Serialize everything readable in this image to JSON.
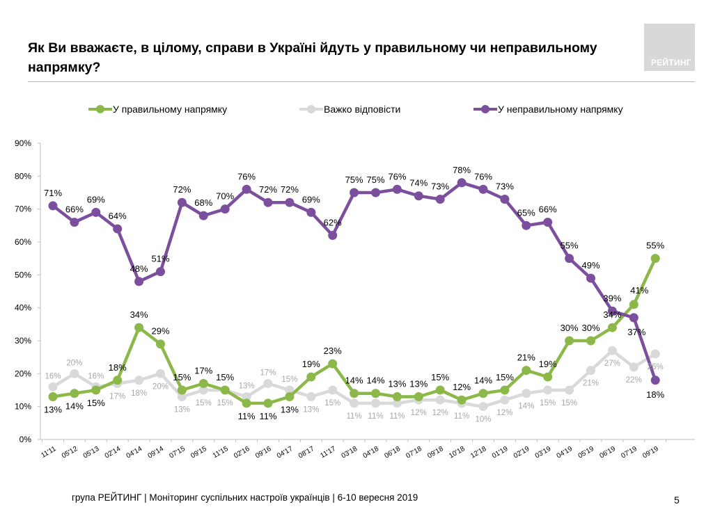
{
  "header": {
    "title": "Як Ви вважаєте, в цілому, справи в Україні йдуть у правильному чи неправильному напрямку?",
    "logo_text": "РЕЙТИНГ"
  },
  "legend": [
    {
      "key": "right",
      "label": "У правильному напрямку"
    },
    {
      "key": "hard",
      "label": "Важко відповісти"
    },
    {
      "key": "wrong",
      "label": "У неправильному напрямку"
    }
  ],
  "colors": {
    "right": "#8cb84a",
    "hard": "#d9d9d9",
    "wrong": "#7b4f9d",
    "hard_label": "#a6a6a6",
    "grid_axis": "#bfbfbf"
  },
  "chart_data": {
    "type": "line",
    "title": "Як Ви вважаєте, в цілому, справи в Україні йдуть у правильному чи неправильному напрямку?",
    "xlabel": "",
    "ylabel": "",
    "ylim": [
      0,
      90
    ],
    "y_ticks": [
      "0%",
      "10%",
      "20%",
      "30%",
      "40%",
      "50%",
      "60%",
      "70%",
      "80%",
      "90%"
    ],
    "grid": false,
    "legend_position": "top",
    "categories": [
      "11'11",
      "05'12",
      "05'13",
      "02'14",
      "04'14",
      "09'14",
      "07'15",
      "09'15",
      "11'15",
      "02'16",
      "09'16",
      "04'17",
      "08'17",
      "11'17",
      "03'18",
      "04'18",
      "06'18",
      "07'18",
      "09'18",
      "10'18",
      "12'18",
      "01'19",
      "02'19",
      "03'19",
      "04'19",
      "05'19",
      "06'19",
      "07'19",
      "09'19"
    ],
    "series": [
      {
        "key": "wrong",
        "name": "У неправильному напрямку",
        "values": [
          71,
          66,
          69,
          64,
          48,
          51,
          72,
          68,
          70,
          76,
          72,
          72,
          69,
          62,
          75,
          75,
          76,
          74,
          73,
          78,
          76,
          73,
          65,
          66,
          55,
          49,
          39,
          37,
          18
        ],
        "labels": [
          "71%",
          "66%",
          "69%",
          "64%",
          "48%",
          "51%",
          "72%",
          "68%",
          "70%",
          "76%",
          "72%",
          "72%",
          "69%",
          "62%",
          "75%",
          "75%",
          "76%",
          "74%",
          "73%",
          "78%",
          "76%",
          "73%",
          "65%",
          "66%",
          "55%",
          "49%",
          "39%",
          "37%",
          "18%"
        ]
      },
      {
        "key": "right",
        "name": "У правильному напрямку",
        "values": [
          13,
          14,
          15,
          18,
          34,
          29,
          15,
          17,
          15,
          11,
          11,
          13,
          19,
          23,
          14,
          14,
          13,
          13,
          15,
          12,
          14,
          15,
          21,
          19,
          30,
          30,
          34,
          41,
          55
        ],
        "labels": [
          "13%",
          "14%",
          "15%",
          "18%",
          "34%",
          "29%",
          "15%",
          "17%",
          "15%",
          "11%",
          "11%",
          "13%",
          "19%",
          "23%",
          "14%",
          "14%",
          "13%",
          "13%",
          "15%",
          "12%",
          "14%",
          "15%",
          "21%",
          "19%",
          "30%",
          "30%",
          "34%",
          "41%",
          "55%"
        ]
      },
      {
        "key": "hard",
        "name": "Важко відповісти",
        "values": [
          16,
          20,
          16,
          17,
          18,
          20,
          13,
          15,
          15,
          13,
          17,
          15,
          13,
          15,
          11,
          11,
          11,
          12,
          12,
          11,
          10,
          12,
          14,
          15,
          15,
          21,
          27,
          22,
          26
        ],
        "labels": [
          "16%",
          "20%",
          "16%",
          "17%",
          "18%",
          "20%",
          "13%",
          "15%",
          "15%",
          "13%",
          "17%",
          "15%",
          "13%",
          "15%",
          "11%",
          "11%",
          "11%",
          "12%",
          "12%",
          "11%",
          "10%",
          "12%",
          "14%",
          "15%",
          "15%",
          "21%",
          "27%",
          "22%",
          "26%"
        ]
      }
    ]
  },
  "footer": {
    "source": "група РЕЙТИНГ | Моніторинг суспільних настроїв українців | 6-10 вересня 2019",
    "page_number": "5"
  }
}
